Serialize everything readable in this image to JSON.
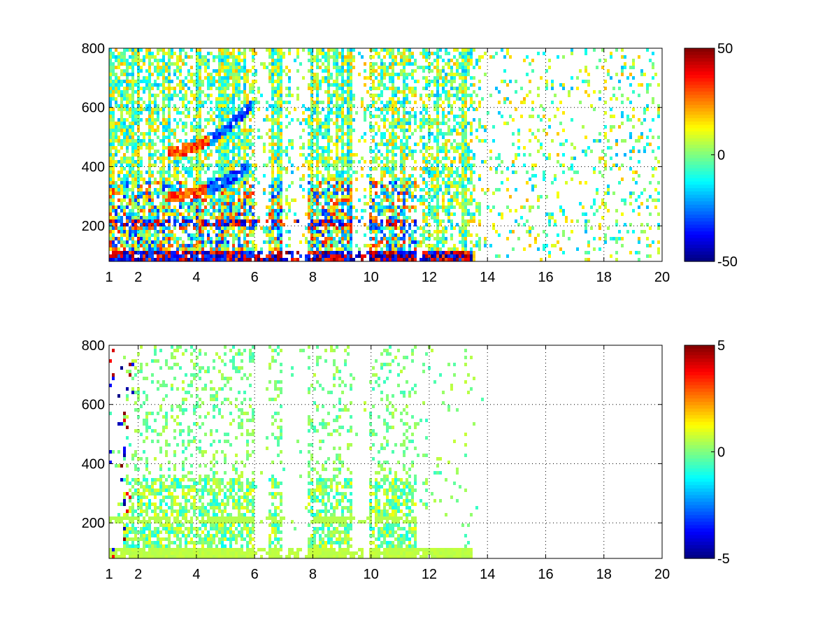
{
  "chart_data": [
    {
      "type": "heatmap",
      "title": "",
      "xlabel": "",
      "ylabel": "",
      "xlim": [
        1,
        20
      ],
      "ylim": [
        80,
        800
      ],
      "x_ticks": [
        1,
        2,
        4,
        6,
        8,
        10,
        12,
        14,
        16,
        18,
        20
      ],
      "x_tick_labels": [
        "1",
        "2",
        "4",
        "6",
        "8",
        "10",
        "12",
        "14",
        "16",
        "18",
        "20"
      ],
      "y_ticks": [
        200,
        400,
        600,
        800
      ],
      "y_tick_labels": [
        "200",
        "400",
        "600",
        "800"
      ],
      "grid": true,
      "grid_style": "dotted",
      "colormap": "jet",
      "colorbar": {
        "min": -50,
        "max": 50,
        "tick_values": [
          50,
          0,
          -50
        ],
        "tick_labels": [
          "50",
          "0",
          "-50"
        ]
      },
      "description_values": {
        "active_x_range": [
          1,
          20
        ],
        "dense_bands_x": [
          [
            1,
            6
          ],
          [
            6.5,
            7
          ],
          [
            7.8,
            9.4
          ],
          [
            10,
            11.6
          ],
          [
            11.8,
            13.5
          ]
        ],
        "strong_low_y_band_center": 90,
        "secondary_band_center": 205,
        "curved_features": [
          {
            "x_range": [
              3.0,
              5.9
            ],
            "y_range": [
              450,
              610
            ],
            "sign": "mixed"
          },
          {
            "x_range": [
              3.0,
              5.8
            ],
            "y_range": [
              300,
              400
            ],
            "sign": "mixed"
          }
        ]
      }
    },
    {
      "type": "heatmap",
      "title": "",
      "xlabel": "",
      "ylabel": "",
      "xlim": [
        1,
        20
      ],
      "ylim": [
        80,
        800
      ],
      "x_ticks": [
        1,
        2,
        4,
        6,
        8,
        10,
        12,
        14,
        16,
        18,
        20
      ],
      "x_tick_labels": [
        "1",
        "2",
        "4",
        "6",
        "8",
        "10",
        "12",
        "14",
        "16",
        "18",
        "20"
      ],
      "y_ticks": [
        200,
        400,
        600,
        800
      ],
      "y_tick_labels": [
        "200",
        "400",
        "600",
        "800"
      ],
      "grid": true,
      "grid_style": "dotted",
      "colormap": "jet",
      "colorbar": {
        "min": -5,
        "max": 5,
        "tick_values": [
          5,
          0,
          -5
        ],
        "tick_labels": [
          "5",
          "0",
          "-5"
        ]
      },
      "description_values": {
        "active_x_range": [
          1,
          14
        ],
        "dense_bands_x": [
          [
            1.5,
            6
          ],
          [
            6.5,
            7
          ],
          [
            7.8,
            9.4
          ],
          [
            10,
            11.6
          ],
          [
            11.8,
            13.5
          ]
        ],
        "strong_low_y_band_center": 90,
        "secondary_band_center": 205
      }
    }
  ]
}
